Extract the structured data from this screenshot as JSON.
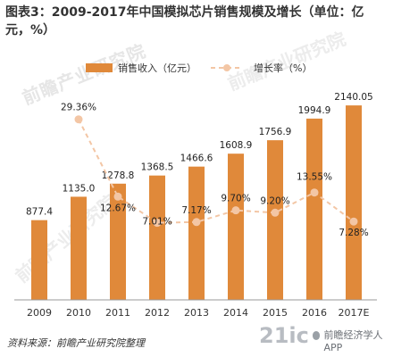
{
  "title": "图表3：2009-2017年中国模拟芯片销售规模及增长（单位：亿元，%）",
  "chart_data": {
    "type": "bar",
    "categories": [
      "2009",
      "2010",
      "2011",
      "2012",
      "2013",
      "2014",
      "2015",
      "2016",
      "2017E"
    ],
    "series": [
      {
        "name": "销售收入（亿元）",
        "type": "bar",
        "values": [
          877.4,
          1135.0,
          1278.8,
          1368.5,
          1466.6,
          1608.9,
          1756.9,
          1994.9,
          2140.05
        ],
        "labels": [
          "877.4",
          "1135.0",
          "1278.8",
          "1368.5",
          "1466.6",
          "1608.9",
          "1756.9",
          "1994.9",
          "2140.05"
        ],
        "color": "#e0893a"
      },
      {
        "name": "增长率（%）",
        "type": "line",
        "values": [
          null,
          29.36,
          12.67,
          7.01,
          7.17,
          9.7,
          9.2,
          13.55,
          7.28
        ],
        "labels": [
          "",
          "29.36%",
          "12.67%",
          "7.01%",
          "7.17%",
          "9.70%",
          "9.20%",
          "13.55%",
          "7.28%"
        ],
        "color": "#f3c6a5"
      }
    ],
    "bar_range": [
      0,
      2200
    ],
    "line_range": [
      0,
      32
    ],
    "legend_position": "top"
  },
  "source_text": "资料来源：前瞻产业研究院整理",
  "watermarks": [
    "前瞻产业研究院",
    "前瞻产业研究院",
    "前瞻产业研究院"
  ],
  "brand": {
    "big": "21ic",
    "small": "前瞻经济学人 APP"
  }
}
